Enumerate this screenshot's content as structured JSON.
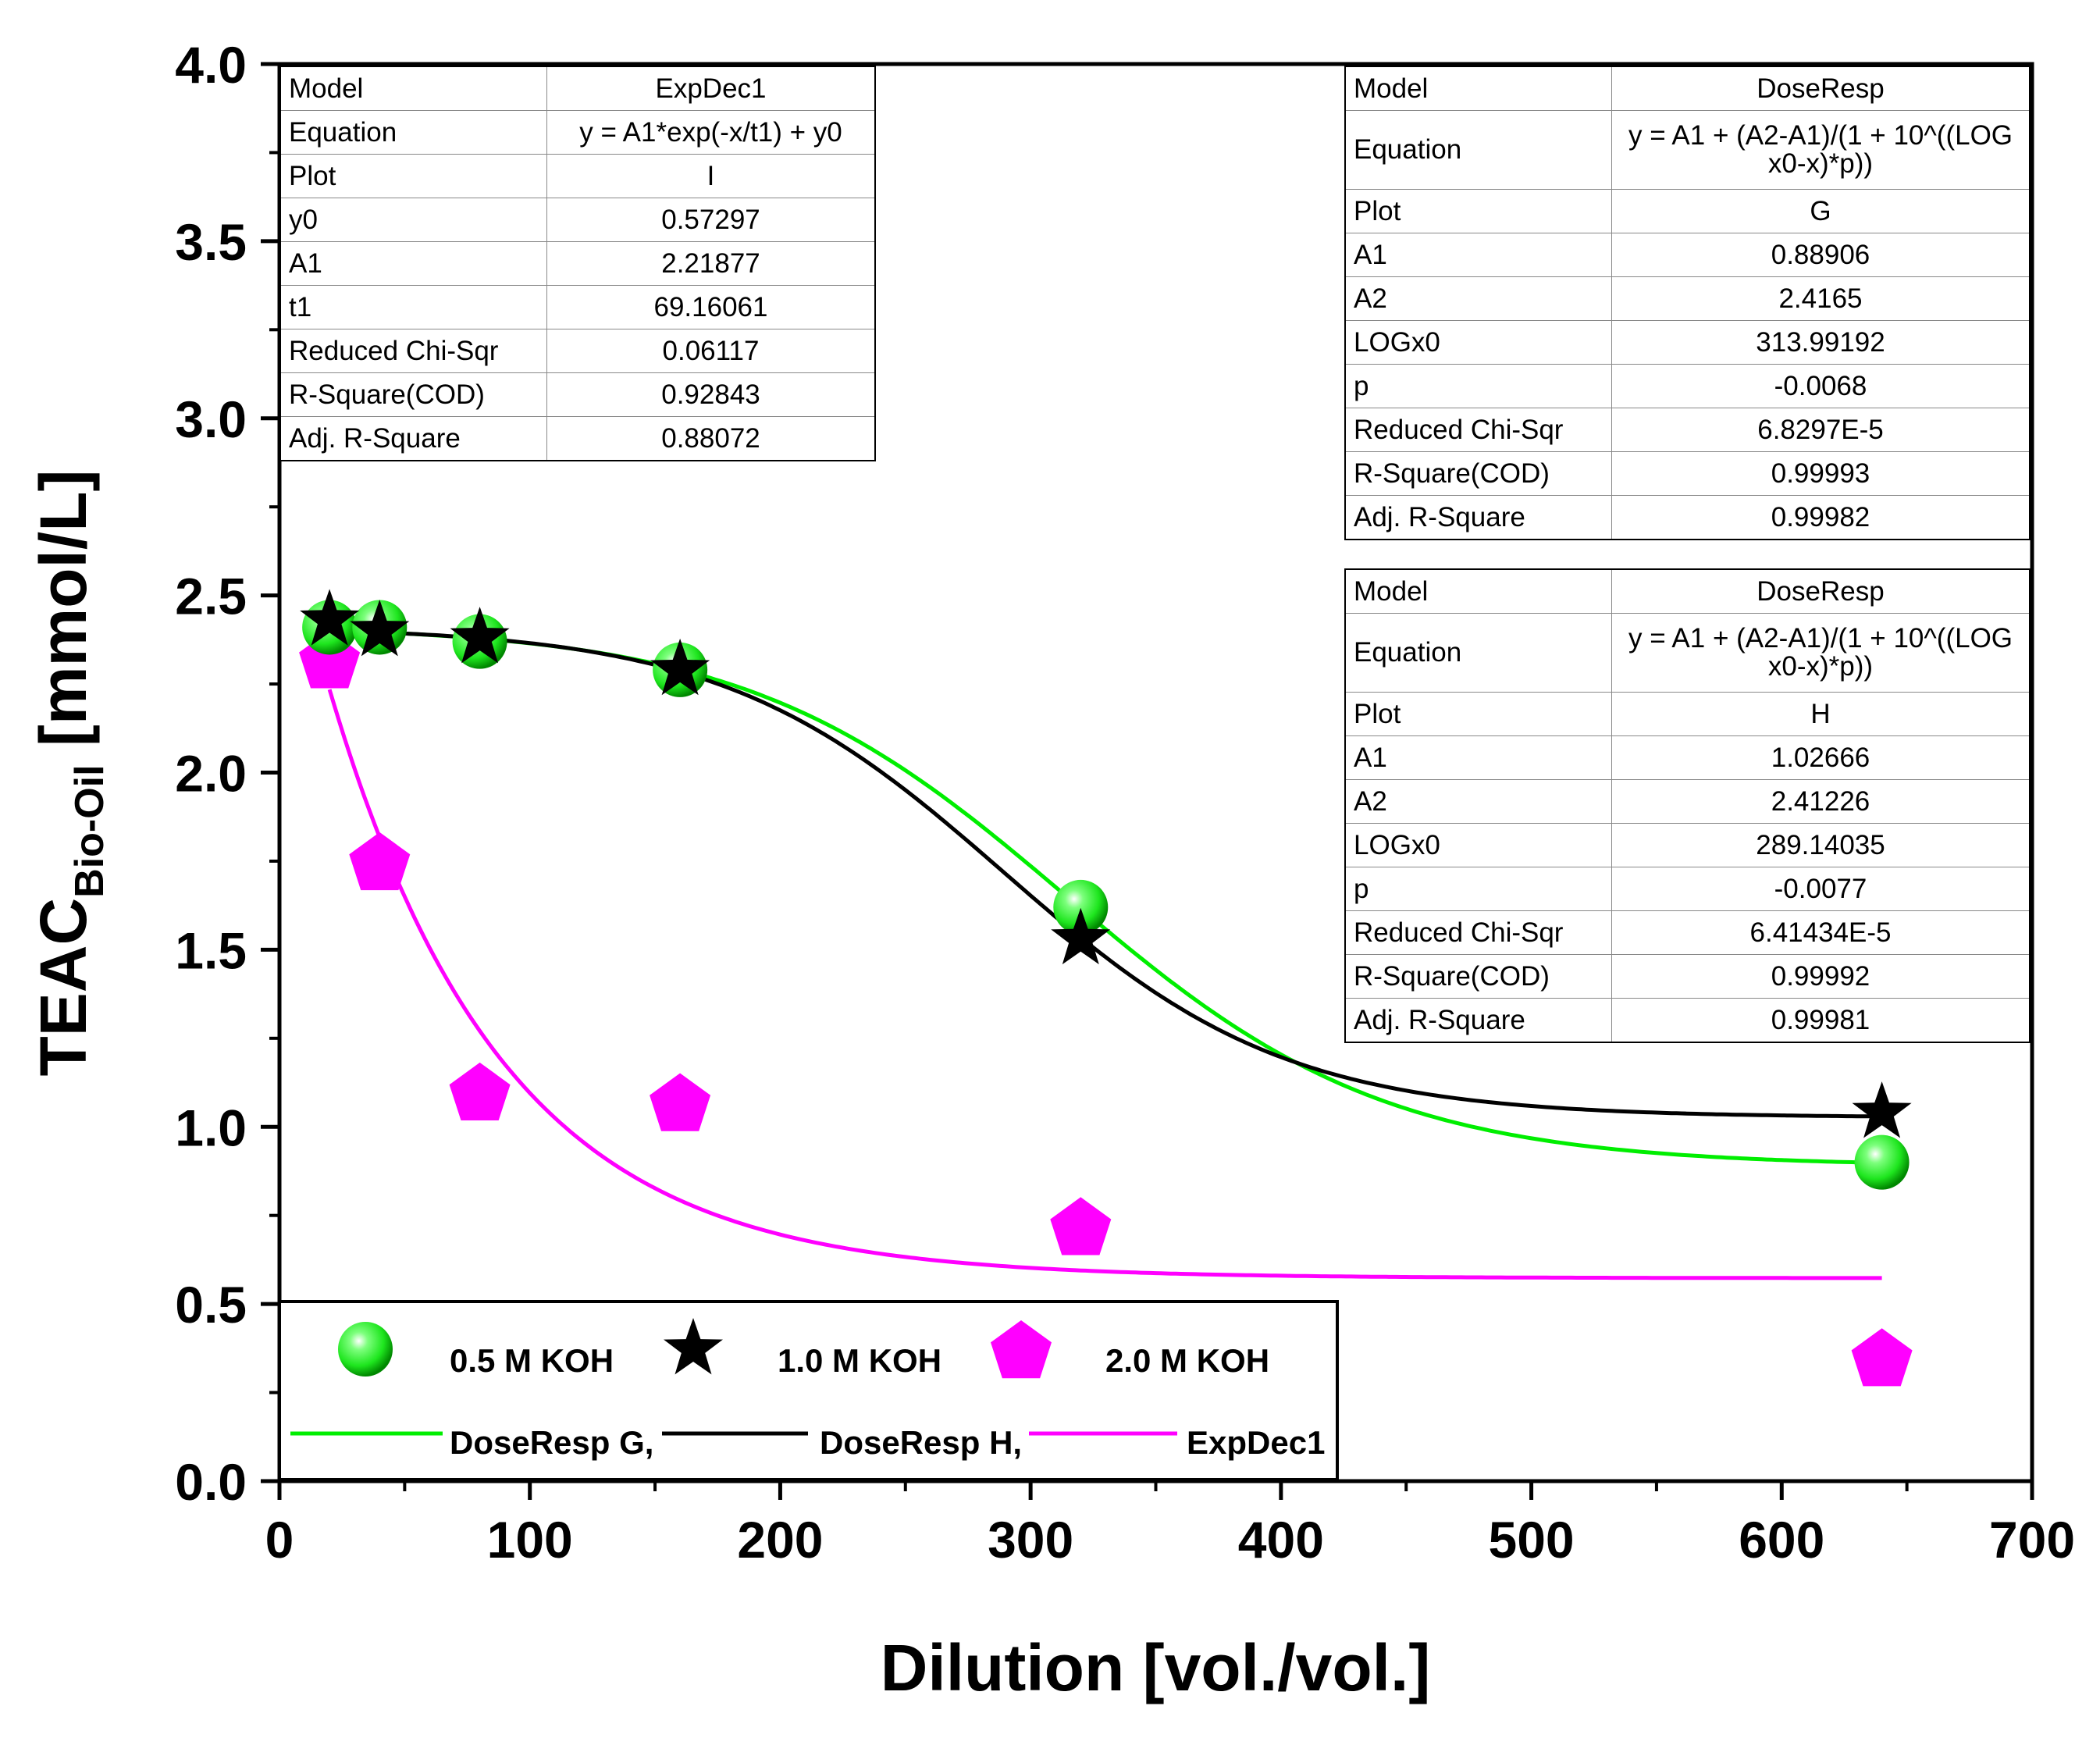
{
  "chart_data": {
    "type": "scatter",
    "xlabel": "Dilution [vol./vol.]",
    "ylabel_main": "TEAC",
    "ylabel_sub": "Bio-Oil",
    "ylabel_unit": " [mmol/L]",
    "xlim": [
      0,
      700
    ],
    "ylim": [
      0,
      4
    ],
    "x_ticks": [
      "0",
      "100",
      "200",
      "300",
      "400",
      "500",
      "600",
      "700"
    ],
    "y_ticks": [
      "0.0",
      "0.5",
      "1.0",
      "1.5",
      "2.0",
      "2.5",
      "3.0",
      "3.5",
      "4.0"
    ],
    "series": [
      {
        "name": "0.5 M KOH",
        "marker": "sphere",
        "color": "#00ee00",
        "x": [
          20,
          40,
          80,
          160,
          320,
          640
        ],
        "y": [
          2.41,
          2.41,
          2.37,
          2.29,
          1.62,
          0.9
        ]
      },
      {
        "name": "1.0 M KOH",
        "marker": "star",
        "color": "#000000",
        "x": [
          20,
          40,
          80,
          160,
          320,
          640
        ],
        "y": [
          2.43,
          2.4,
          2.38,
          2.29,
          1.53,
          1.04
        ]
      },
      {
        "name": "2.0 M KOH",
        "marker": "pentagon",
        "color": "#ff00ff",
        "x": [
          20,
          40,
          80,
          160,
          320,
          640
        ],
        "y": [
          2.32,
          1.75,
          1.1,
          1.07,
          0.72,
          0.35
        ]
      }
    ],
    "fits": [
      {
        "name": "DoseResp G,",
        "color": "#00ee00",
        "model": "DoseResp",
        "A1": 0.88906,
        "A2": 2.4165,
        "LOGx0": 313.99192,
        "p": -0.0068,
        "x_range": [
          20,
          640
        ]
      },
      {
        "name": "DoseResp H,",
        "color": "#000000",
        "model": "DoseResp",
        "A1": 1.02666,
        "A2": 2.41226,
        "LOGx0": 289.14035,
        "p": -0.0077,
        "x_range": [
          20,
          640
        ]
      },
      {
        "name": "ExpDec1",
        "color": "#ff00ff",
        "model": "ExpDec1",
        "y0": 0.57297,
        "A1": 2.21877,
        "t1": 69.16061,
        "x_range": [
          20,
          640
        ]
      }
    ]
  },
  "tables": {
    "expdec": {
      "rows": [
        {
          "label": "Model",
          "value": "ExpDec1"
        },
        {
          "label": "Equation",
          "value": "y = A1*exp(-x/t1) + y0"
        },
        {
          "label": "Plot",
          "value": "I"
        },
        {
          "label": "y0",
          "value": "0.57297"
        },
        {
          "label": "A1",
          "value": "2.21877"
        },
        {
          "label": "t1",
          "value": "69.16061"
        },
        {
          "label": "Reduced Chi-Sqr",
          "value": "0.06117"
        },
        {
          "label": "R-Square(COD)",
          "value": "0.92843"
        },
        {
          "label": "Adj. R-Square",
          "value": "0.88072"
        }
      ]
    },
    "dose_g": {
      "rows": [
        {
          "label": "Model",
          "value": "DoseResp"
        },
        {
          "label": "Equation",
          "value": "y = A1 + (A2-A1)/(1 + 10^((LOG x0-x)*p))"
        },
        {
          "label": "Plot",
          "value": "G"
        },
        {
          "label": "A1",
          "value": "0.88906"
        },
        {
          "label": "A2",
          "value": "2.4165"
        },
        {
          "label": "LOGx0",
          "value": "313.99192"
        },
        {
          "label": "p",
          "value": "-0.0068"
        },
        {
          "label": "Reduced Chi-Sqr",
          "value": "6.8297E-5"
        },
        {
          "label": "R-Square(COD)",
          "value": "0.99993"
        },
        {
          "label": "Adj. R-Square",
          "value": "0.99982"
        }
      ]
    },
    "dose_h": {
      "rows": [
        {
          "label": "Model",
          "value": "DoseResp"
        },
        {
          "label": "Equation",
          "value": "y = A1 + (A2-A1)/(1 + 10^((LOG x0-x)*p))"
        },
        {
          "label": "Plot",
          "value": "H"
        },
        {
          "label": "A1",
          "value": "1.02666"
        },
        {
          "label": "A2",
          "value": "2.41226"
        },
        {
          "label": "LOGx0",
          "value": "289.14035"
        },
        {
          "label": "p",
          "value": "-0.0077"
        },
        {
          "label": "Reduced Chi-Sqr",
          "value": "6.41434E-5"
        },
        {
          "label": "R-Square(COD)",
          "value": "0.99992"
        },
        {
          "label": "Adj. R-Square",
          "value": "0.99981"
        }
      ]
    }
  },
  "legend": {
    "row1": [
      "0.5 M KOH",
      "1.0 M KOH",
      "2.0 M KOH"
    ],
    "row2": [
      "DoseResp G,",
      "DoseResp H,",
      "ExpDec1"
    ]
  }
}
